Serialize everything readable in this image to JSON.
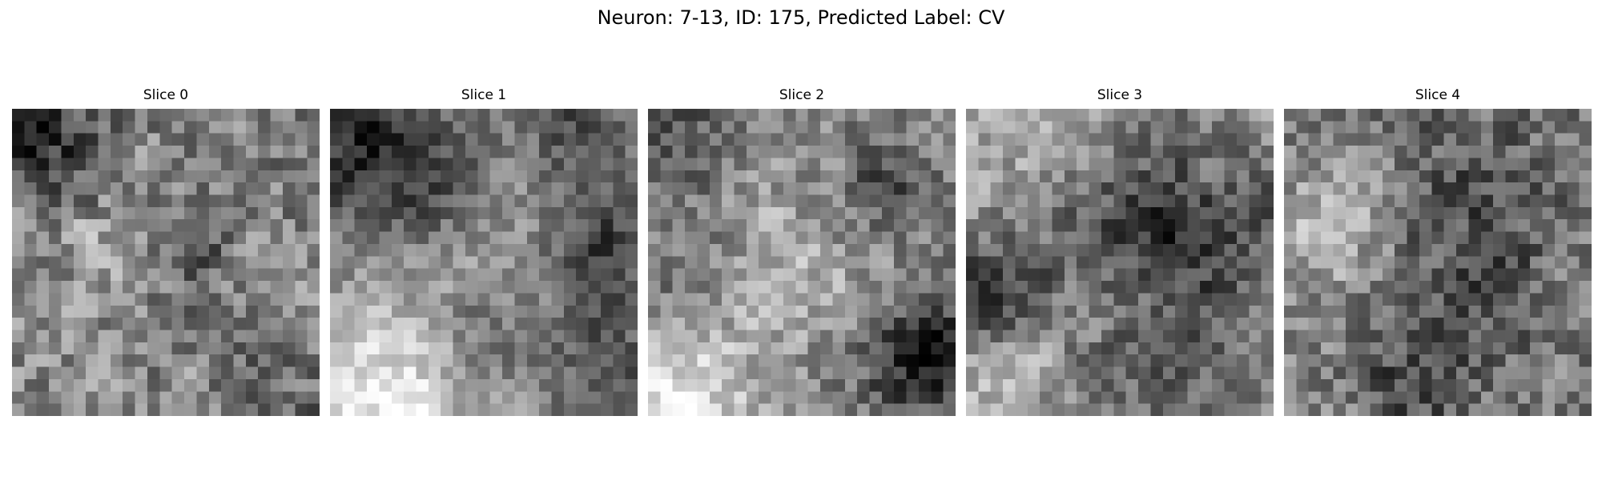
{
  "figure": {
    "title": "Neuron: 7-13, ID: 175, Predicted Label: CV",
    "colormap": "grayscale",
    "grid_size": 25
  },
  "slices": [
    {
      "title": "Slice 0"
    },
    {
      "title": "Slice 1"
    },
    {
      "title": "Slice 2"
    },
    {
      "title": "Slice 3"
    },
    {
      "title": "Slice 4"
    }
  ]
}
